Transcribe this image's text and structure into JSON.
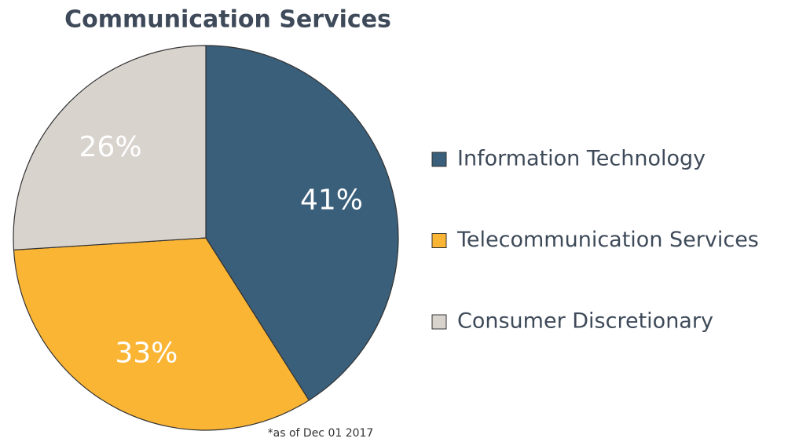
{
  "chart_data": {
    "type": "pie",
    "title": "Communication Services",
    "categories": [
      "Information Technology",
      "Telecommunication Services",
      "Consumer Discretionary"
    ],
    "values": [
      41,
      33,
      26
    ],
    "value_labels": [
      "41%",
      "33%",
      "26%"
    ],
    "colors": [
      "#3a5f7a",
      "#fbb535",
      "#d9d3ce"
    ],
    "label_colors": [
      "#ffffff",
      "#ffffff",
      "#ffffff"
    ],
    "note": "*as of Dec 01 2017",
    "legend": "right"
  }
}
